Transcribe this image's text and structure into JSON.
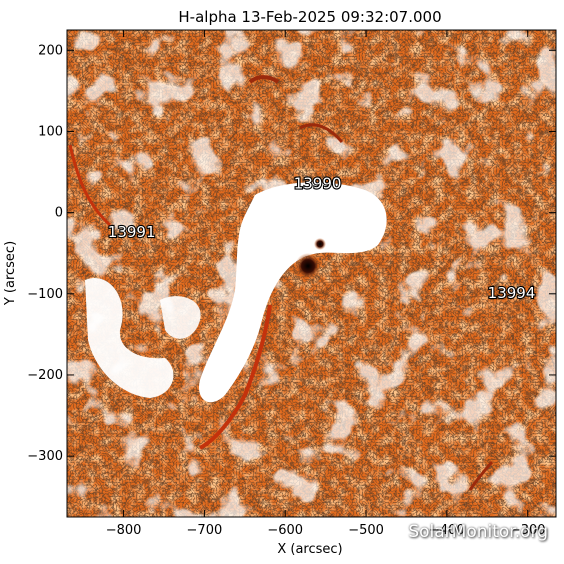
{
  "title": "H-alpha 13-Feb-2025 09:32:07.000",
  "axes": {
    "xlabel": "X (arcsec)",
    "ylabel": "Y (arcsec)",
    "xlim": [
      -870,
      -265
    ],
    "ylim": [
      -375,
      225
    ],
    "xticks": [
      -800,
      -700,
      -600,
      -500,
      -400,
      -300
    ],
    "yticks": [
      -300,
      -200,
      -100,
      0,
      100,
      200
    ]
  },
  "regions": [
    {
      "label": "13990",
      "x": -560,
      "y": 30
    },
    {
      "label": "13991",
      "x": -790,
      "y": -30
    },
    {
      "label": "13994",
      "x": -320,
      "y": -105
    }
  ],
  "watermark": "SolarMonitor.org",
  "colors": {
    "base": "#e06a1e",
    "mid": "#f08a3a",
    "dark": "#3a1408",
    "bright": "#ffffff"
  }
}
